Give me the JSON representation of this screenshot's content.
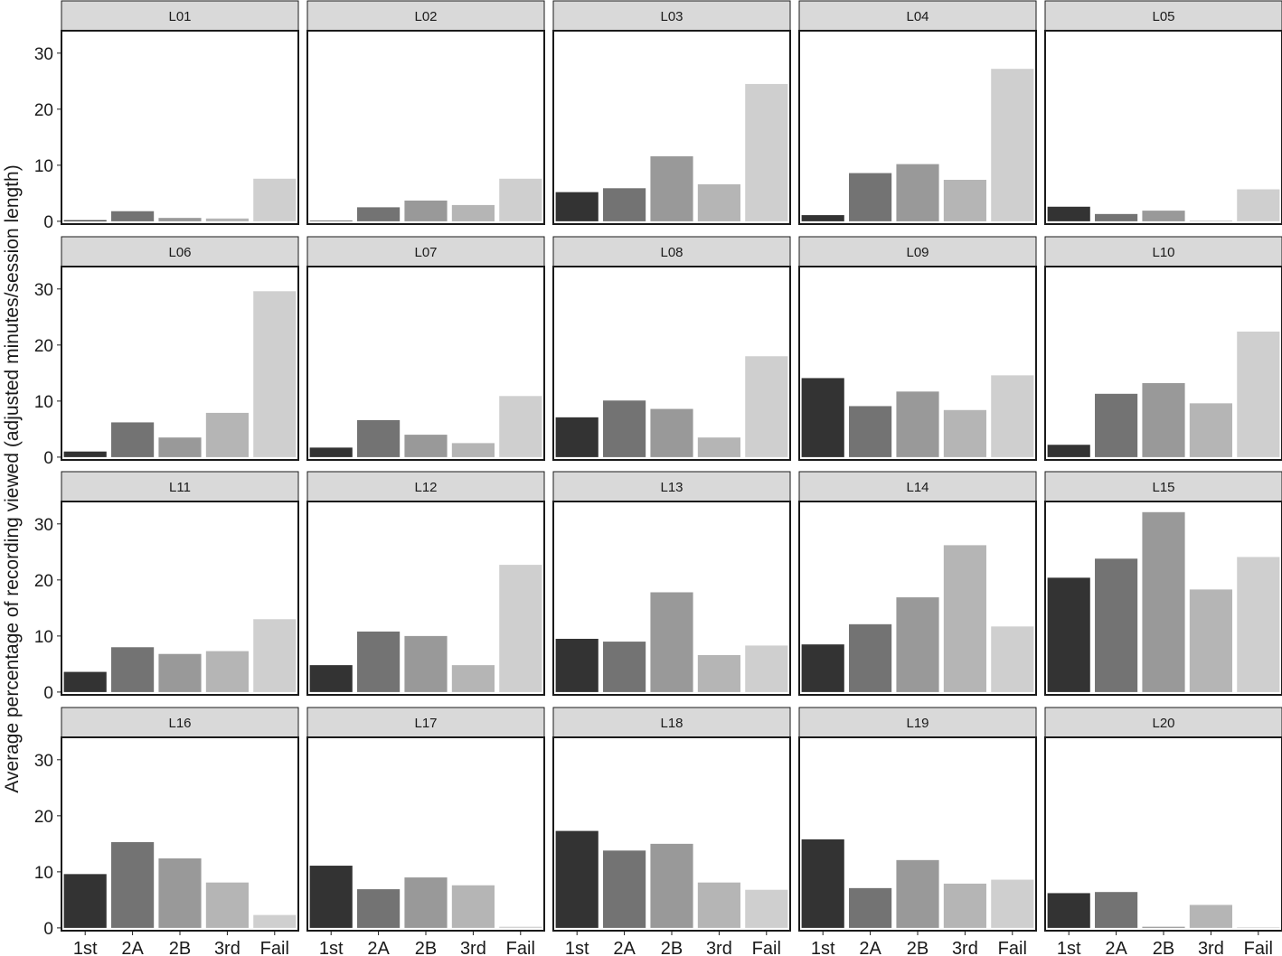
{
  "chart_data": {
    "type": "bar",
    "ylabel": "Average percentage of recording viewed (adjusted minutes/session length)",
    "xlabel": "",
    "categories": [
      "1st",
      "2A",
      "2B",
      "3rd",
      "Fail"
    ],
    "yticks": [
      0,
      10,
      20,
      30
    ],
    "ylim": [
      -0.5,
      34
    ],
    "legend": "none",
    "colors": [
      "#333333",
      "#737373",
      "#999999",
      "#b5b5b5",
      "#cfcfcf"
    ],
    "panels": [
      {
        "label": "L01",
        "values": [
          0.2,
          1.8,
          0.6,
          0.5,
          7.6
        ]
      },
      {
        "label": "L02",
        "values": [
          0.1,
          2.5,
          3.7,
          2.9,
          7.6
        ]
      },
      {
        "label": "L03",
        "values": [
          5.2,
          5.9,
          11.6,
          6.6,
          24.5
        ]
      },
      {
        "label": "L04",
        "values": [
          1.1,
          8.6,
          10.2,
          7.4,
          27.2
        ]
      },
      {
        "label": "L05",
        "values": [
          2.6,
          1.3,
          1.9,
          0.1,
          5.7
        ]
      },
      {
        "label": "L06",
        "values": [
          1.0,
          6.2,
          3.5,
          7.9,
          29.6
        ]
      },
      {
        "label": "L07",
        "values": [
          1.7,
          6.6,
          4.0,
          2.5,
          10.9
        ]
      },
      {
        "label": "L08",
        "values": [
          7.1,
          10.1,
          8.6,
          3.5,
          18.0
        ]
      },
      {
        "label": "L09",
        "values": [
          14.1,
          9.1,
          11.7,
          8.4,
          14.6
        ]
      },
      {
        "label": "L10",
        "values": [
          2.2,
          11.3,
          13.2,
          9.6,
          22.4
        ]
      },
      {
        "label": "L11",
        "values": [
          3.6,
          8.0,
          6.8,
          7.3,
          13.0
        ]
      },
      {
        "label": "L12",
        "values": [
          4.8,
          10.8,
          10.0,
          4.8,
          22.7
        ]
      },
      {
        "label": "L13",
        "values": [
          9.5,
          9.0,
          17.8,
          6.6,
          8.3
        ]
      },
      {
        "label": "L14",
        "values": [
          8.5,
          12.1,
          16.9,
          26.2,
          11.7
        ]
      },
      {
        "label": "L15",
        "values": [
          20.4,
          23.8,
          32.1,
          18.3,
          24.1
        ]
      },
      {
        "label": "L16",
        "values": [
          9.6,
          15.3,
          12.4,
          8.1,
          2.3
        ]
      },
      {
        "label": "L17",
        "values": [
          11.1,
          6.9,
          9.0,
          7.6,
          0.2
        ]
      },
      {
        "label": "L18",
        "values": [
          17.3,
          13.8,
          15.0,
          8.1,
          6.8
        ]
      },
      {
        "label": "L19",
        "values": [
          15.8,
          7.1,
          12.1,
          7.9,
          8.6
        ]
      },
      {
        "label": "L20",
        "values": [
          6.2,
          6.4,
          0.2,
          4.1,
          0.0
        ]
      }
    ]
  }
}
